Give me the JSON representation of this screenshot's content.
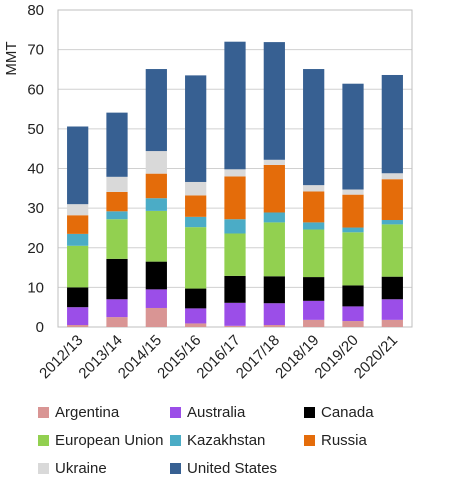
{
  "chart_data": {
    "type": "bar",
    "stacked": true,
    "title": "",
    "xlabel": "",
    "ylabel": "MMT",
    "ylim": [
      0,
      80
    ],
    "yticks": [
      0,
      10,
      20,
      30,
      40,
      50,
      60,
      70,
      80
    ],
    "grid": true,
    "legend_position": "bottom",
    "categories": [
      "2012/13",
      "2013/14",
      "2014/15",
      "2015/16",
      "2016/17",
      "2017/18",
      "2018/19",
      "2019/20",
      "2020/21"
    ],
    "series": [
      {
        "name": "Argentina",
        "color": "#d99594",
        "values": [
          0.5,
          2.5,
          4.8,
          0.9,
          0.3,
          0.5,
          1.8,
          1.5,
          1.8
        ]
      },
      {
        "name": "Australia",
        "color": "#9b4ee8",
        "values": [
          4.5,
          4.5,
          4.7,
          3.8,
          5.8,
          5.5,
          4.8,
          3.7,
          5.2
        ]
      },
      {
        "name": "Canada",
        "color": "#000000",
        "values": [
          5.0,
          10.2,
          7.0,
          5.0,
          6.8,
          6.8,
          6.0,
          5.3,
          5.7
        ]
      },
      {
        "name": "European Union",
        "color": "#92d050",
        "values": [
          10.5,
          10.0,
          12.8,
          15.5,
          10.7,
          13.6,
          12.0,
          13.4,
          13.2
        ]
      },
      {
        "name": "Kazakhstan",
        "color": "#4bacc6",
        "values": [
          3.0,
          2.0,
          3.2,
          2.6,
          3.6,
          2.5,
          1.8,
          1.2,
          1.1
        ]
      },
      {
        "name": "Russia",
        "color": "#e46c0a",
        "values": [
          4.7,
          4.9,
          6.2,
          5.4,
          10.8,
          12.0,
          7.8,
          8.3,
          10.3
        ]
      },
      {
        "name": "Ukraine",
        "color": "#d9d9d9",
        "values": [
          2.8,
          3.8,
          5.7,
          3.4,
          1.8,
          1.3,
          1.6,
          1.3,
          1.5
        ]
      },
      {
        "name": "United States",
        "color": "#376092",
        "values": [
          19.6,
          16.2,
          20.7,
          26.9,
          32.2,
          29.7,
          29.3,
          26.7,
          24.8
        ]
      }
    ]
  }
}
